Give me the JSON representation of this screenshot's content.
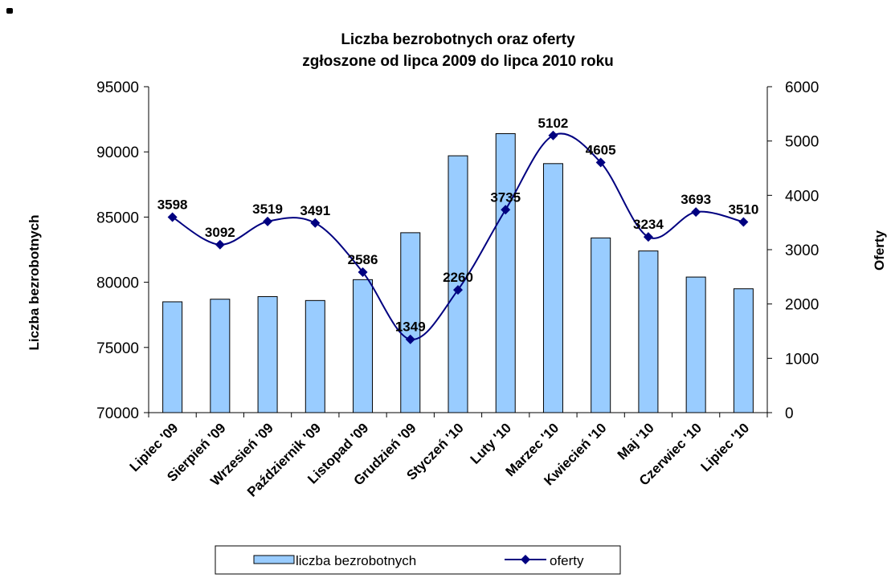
{
  "chart_data": {
    "type": "bar-line",
    "title": [
      "Liczba bezrobotnych oraz oferty",
      "zgłoszone od lipca 2009 do lipca 2010 roku"
    ],
    "ylabel": "Liczba bezrobotnych",
    "y2label": "Oferty",
    "categories": [
      "Lipiec '09",
      "Sierpień '09",
      "Wrzesień '09",
      "Październik '09",
      "Listopad '09",
      "Grudzień '09",
      "Styczeń '10",
      "Luty '10",
      "Marzec '10",
      "Kwiecień '10",
      "Maj '10",
      "Czerwiec '10",
      "Lipiec '10"
    ],
    "series": [
      {
        "name": "liczba bezrobotnych",
        "type": "bar",
        "color": "#99ccff",
        "values": [
          78500,
          78700,
          78900,
          78600,
          80200,
          83800,
          89700,
          91400,
          89100,
          83400,
          82400,
          80400,
          79500
        ]
      },
      {
        "name": "oferty",
        "type": "line",
        "axis": "y2",
        "color": "#000080",
        "values": [
          3598,
          3092,
          3519,
          3491,
          2586,
          1349,
          2260,
          3735,
          5102,
          4605,
          3234,
          3693,
          3510
        ]
      }
    ],
    "ylim": [
      70000,
      95000
    ],
    "yticks": [
      70000,
      75000,
      80000,
      85000,
      90000,
      95000
    ],
    "y2lim": [
      0,
      6000
    ],
    "y2ticks": [
      0,
      1000,
      2000,
      3000,
      4000,
      5000,
      6000
    ]
  }
}
